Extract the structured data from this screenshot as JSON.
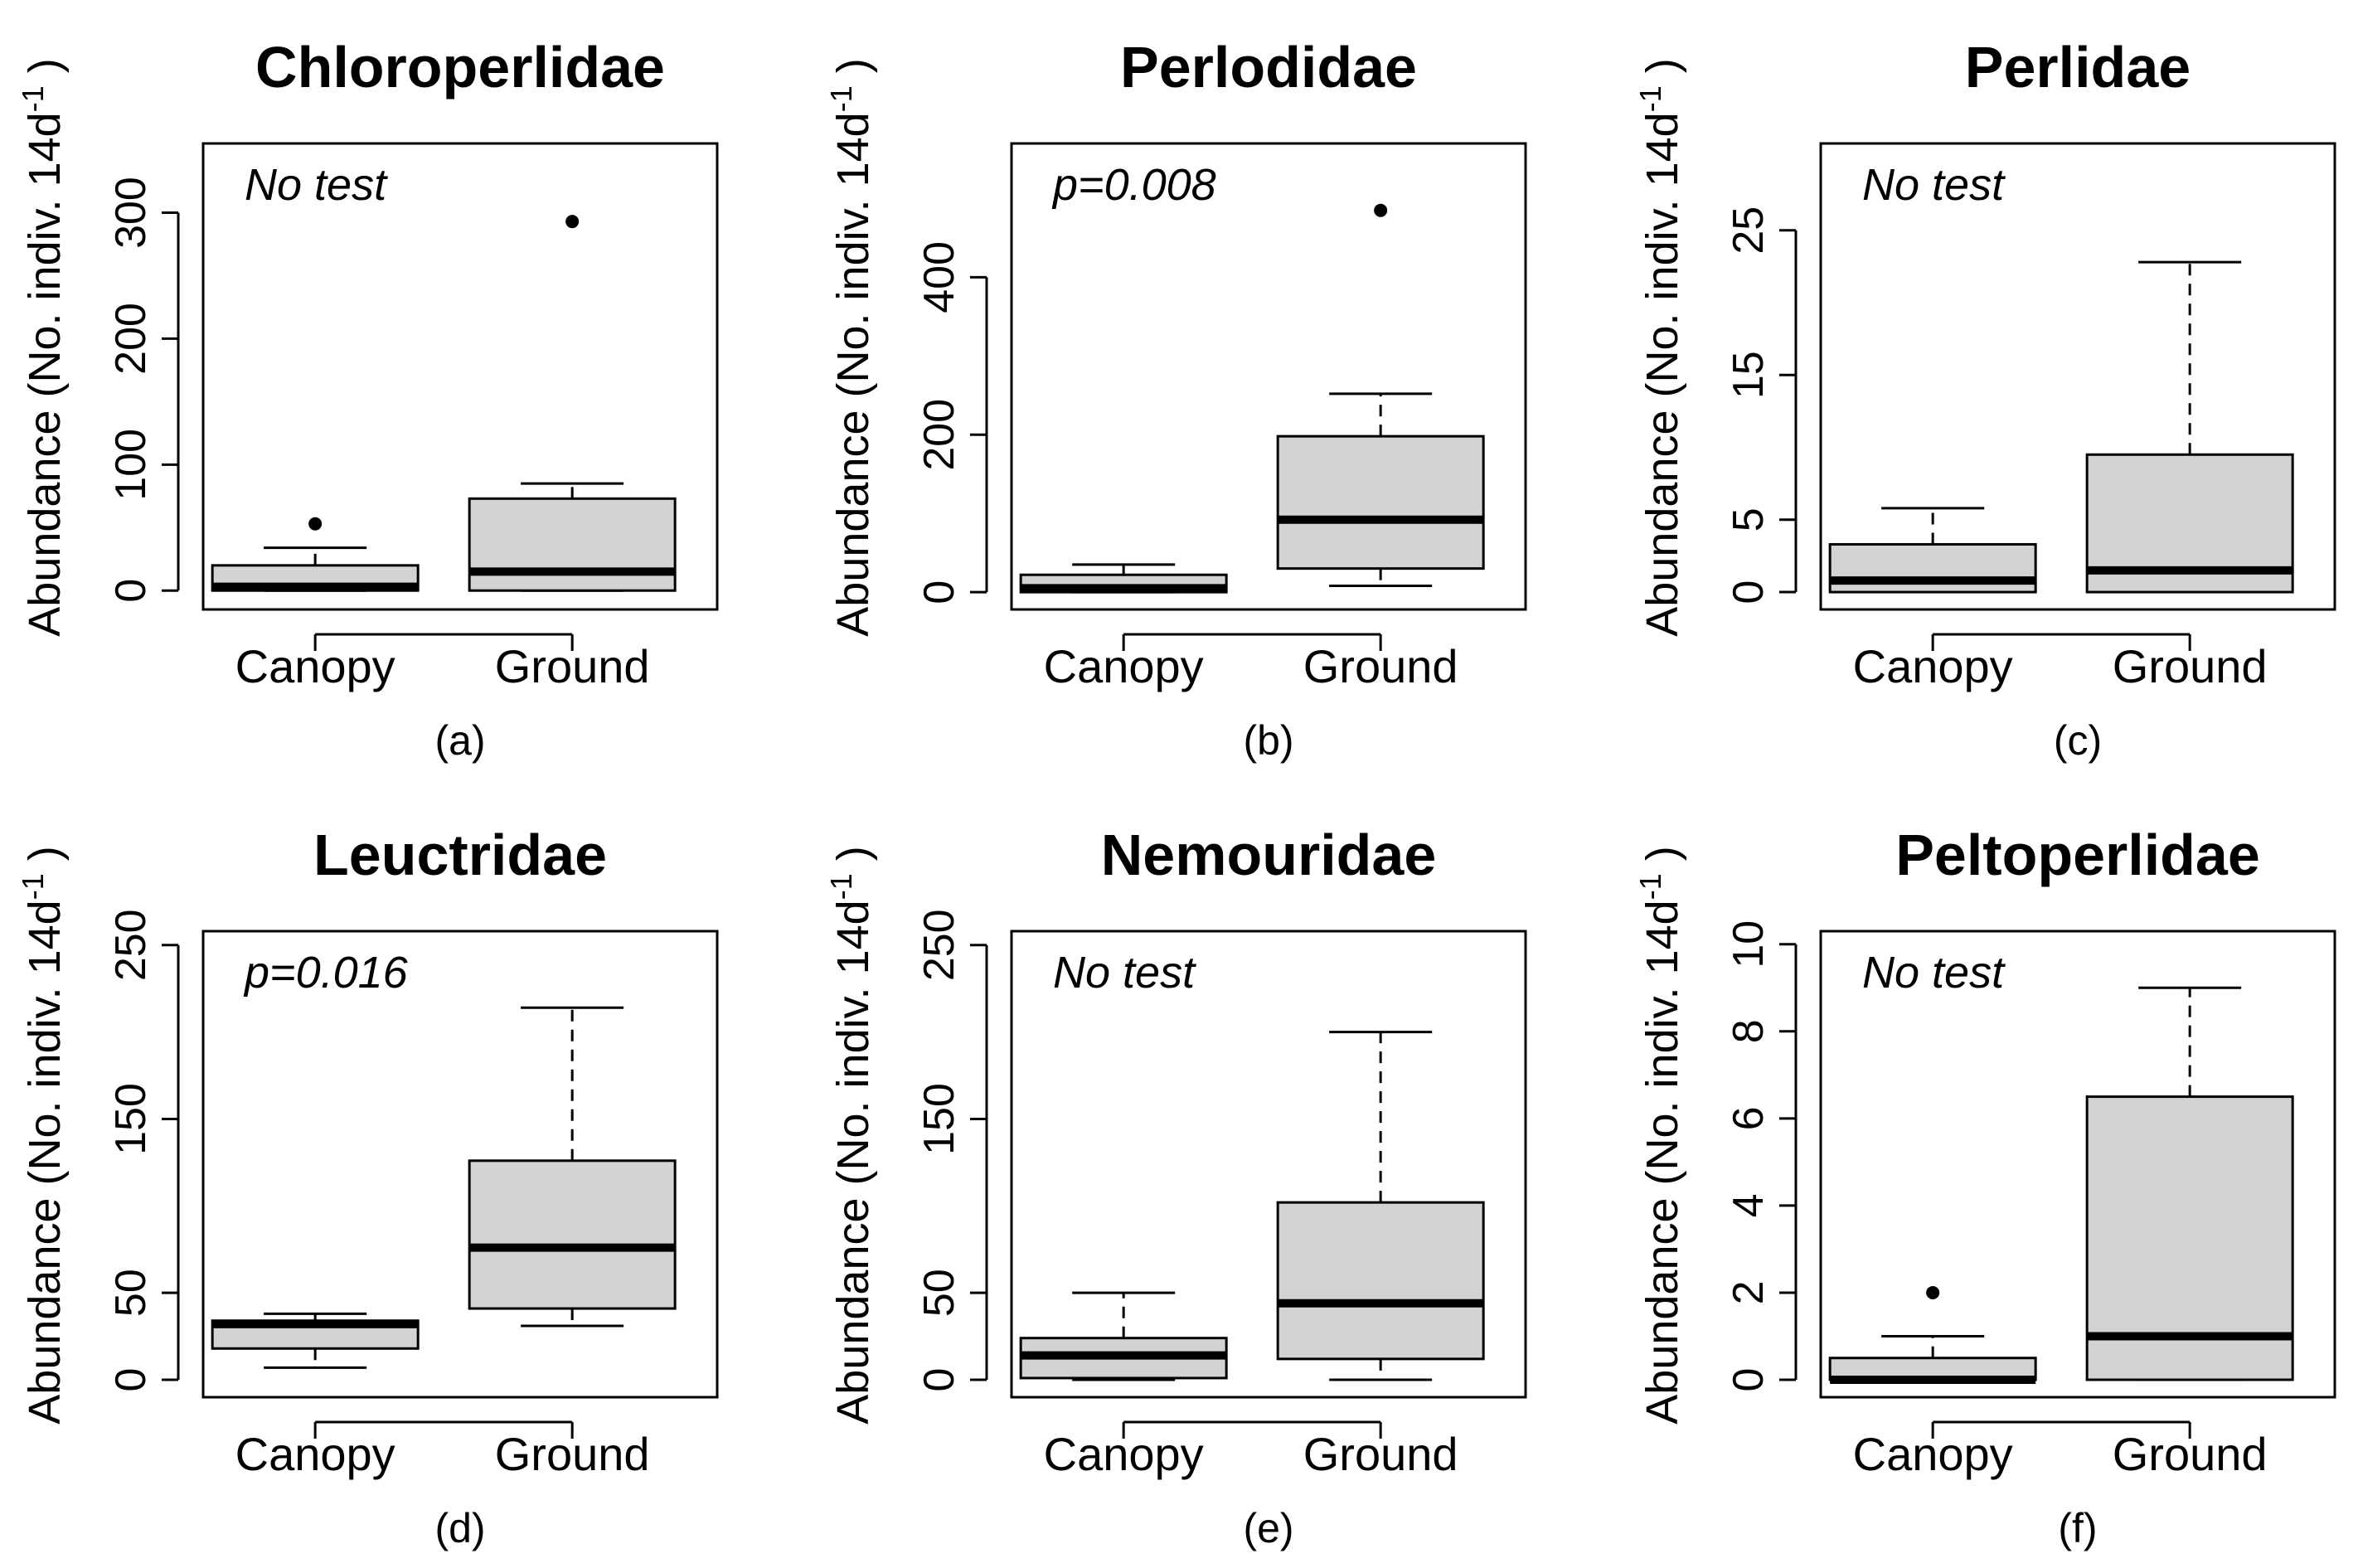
{
  "chart_data": [
    {
      "type": "box",
      "title": "Chloroperlidae",
      "panel_label": "(a)",
      "annotation": "No test",
      "ylabel": "Abundance (No. indiv. 14d",
      "ylabel_sup": "-1",
      "ylabel_close": ")",
      "yticks": [
        0,
        100,
        200,
        300
      ],
      "ytick_labels": [
        "0",
        "100",
        "200",
        "300"
      ],
      "ylim": [
        -15,
        355
      ],
      "categories": [
        "Canopy",
        "Ground"
      ],
      "boxes": [
        {
          "whisker_low": 0,
          "q1": 0,
          "median": 3,
          "q3": 20,
          "whisker_high": 34,
          "outliers": [
            53
          ]
        },
        {
          "whisker_low": 0,
          "q1": 0,
          "median": 15,
          "q3": 73,
          "whisker_high": 85,
          "outliers": [
            293
          ]
        }
      ]
    },
    {
      "type": "box",
      "title": "Perlodidae",
      "panel_label": "(b)",
      "annotation": "p=0.008",
      "ylabel": "Abundance (No. indiv. 14d",
      "ylabel_sup": "-1",
      "ylabel_close": ")",
      "yticks": [
        0,
        200,
        400
      ],
      "ytick_labels": [
        "0",
        "200",
        "400"
      ],
      "ylim": [
        -22,
        570
      ],
      "categories": [
        "Canopy",
        "Ground"
      ],
      "boxes": [
        {
          "whisker_low": 0,
          "q1": 0,
          "median": 5,
          "q3": 22,
          "whisker_high": 35,
          "outliers": []
        },
        {
          "whisker_low": 8,
          "q1": 30,
          "median": 92,
          "q3": 198,
          "whisker_high": 252,
          "outliers": [
            485
          ]
        }
      ]
    },
    {
      "type": "box",
      "title": "Perlidae",
      "panel_label": "(c)",
      "annotation": "No test",
      "ylabel": "Abundance (No. indiv. 14d",
      "ylabel_sup": "-1",
      "ylabel_close": ")",
      "yticks": [
        0,
        5,
        15,
        25
      ],
      "ytick_labels": [
        "0",
        "5",
        "15",
        "25"
      ],
      "ylim": [
        -1.2,
        31
      ],
      "categories": [
        "Canopy",
        "Ground"
      ],
      "boxes": [
        {
          "whisker_low": 0,
          "q1": 0,
          "median": 0.8,
          "q3": 3.3,
          "whisker_high": 5.8,
          "outliers": []
        },
        {
          "whisker_low": 0,
          "q1": 0,
          "median": 1.5,
          "q3": 9.5,
          "whisker_high": 22.8,
          "outliers": []
        }
      ]
    },
    {
      "type": "box",
      "title": "Leuctridae",
      "panel_label": "(d)",
      "annotation": "p=0.016",
      "ylabel": "Abundance (No. indiv. 14d",
      "ylabel_sup": "-1",
      "ylabel_close": ")",
      "yticks": [
        0,
        50,
        150,
        250
      ],
      "ytick_labels": [
        "0",
        "50",
        "150",
        "250"
      ],
      "ylim": [
        -10,
        258
      ],
      "categories": [
        "Canopy",
        "Ground"
      ],
      "boxes": [
        {
          "whisker_low": 7,
          "q1": 18,
          "median": 32,
          "q3": 34,
          "whisker_high": 38,
          "outliers": []
        },
        {
          "whisker_low": 31,
          "q1": 41,
          "median": 76,
          "q3": 126,
          "whisker_high": 214,
          "outliers": []
        }
      ]
    },
    {
      "type": "box",
      "title": "Nemouridae",
      "panel_label": "(e)",
      "annotation": "No test",
      "ylabel": "Abundance (No. indiv. 14d",
      "ylabel_sup": "-1",
      "ylabel_close": ")",
      "yticks": [
        0,
        50,
        150,
        250
      ],
      "ytick_labels": [
        "0",
        "50",
        "150",
        "250"
      ],
      "ylim": [
        -10,
        258
      ],
      "categories": [
        "Canopy",
        "Ground"
      ],
      "boxes": [
        {
          "whisker_low": 0,
          "q1": 1,
          "median": 14,
          "q3": 24,
          "whisker_high": 50,
          "outliers": []
        },
        {
          "whisker_low": 0,
          "q1": 12,
          "median": 44,
          "q3": 102,
          "whisker_high": 200,
          "outliers": []
        }
      ]
    },
    {
      "type": "box",
      "title": "Peltoperlidae",
      "panel_label": "(f)",
      "annotation": "No test",
      "ylabel": "Abundance (No. indiv. 14d",
      "ylabel_sup": "-1",
      "ylabel_close": ")",
      "yticks": [
        0,
        2,
        4,
        6,
        8,
        10
      ],
      "ytick_labels": [
        "0",
        "2",
        "4",
        "6",
        "8",
        "10"
      ],
      "ylim": [
        -0.4,
        10.3
      ],
      "categories": [
        "Canopy",
        "Ground"
      ],
      "boxes": [
        {
          "whisker_low": 0,
          "q1": 0,
          "median": 0,
          "q3": 0.5,
          "whisker_high": 1,
          "outliers": [
            2
          ]
        },
        {
          "whisker_low": 0,
          "q1": 0,
          "median": 1,
          "q3": 6.5,
          "whisker_high": 9,
          "outliers": []
        }
      ]
    }
  ],
  "colors": {
    "box_fill": "#d3d3d3",
    "stroke": "#000000",
    "background": "#ffffff"
  }
}
